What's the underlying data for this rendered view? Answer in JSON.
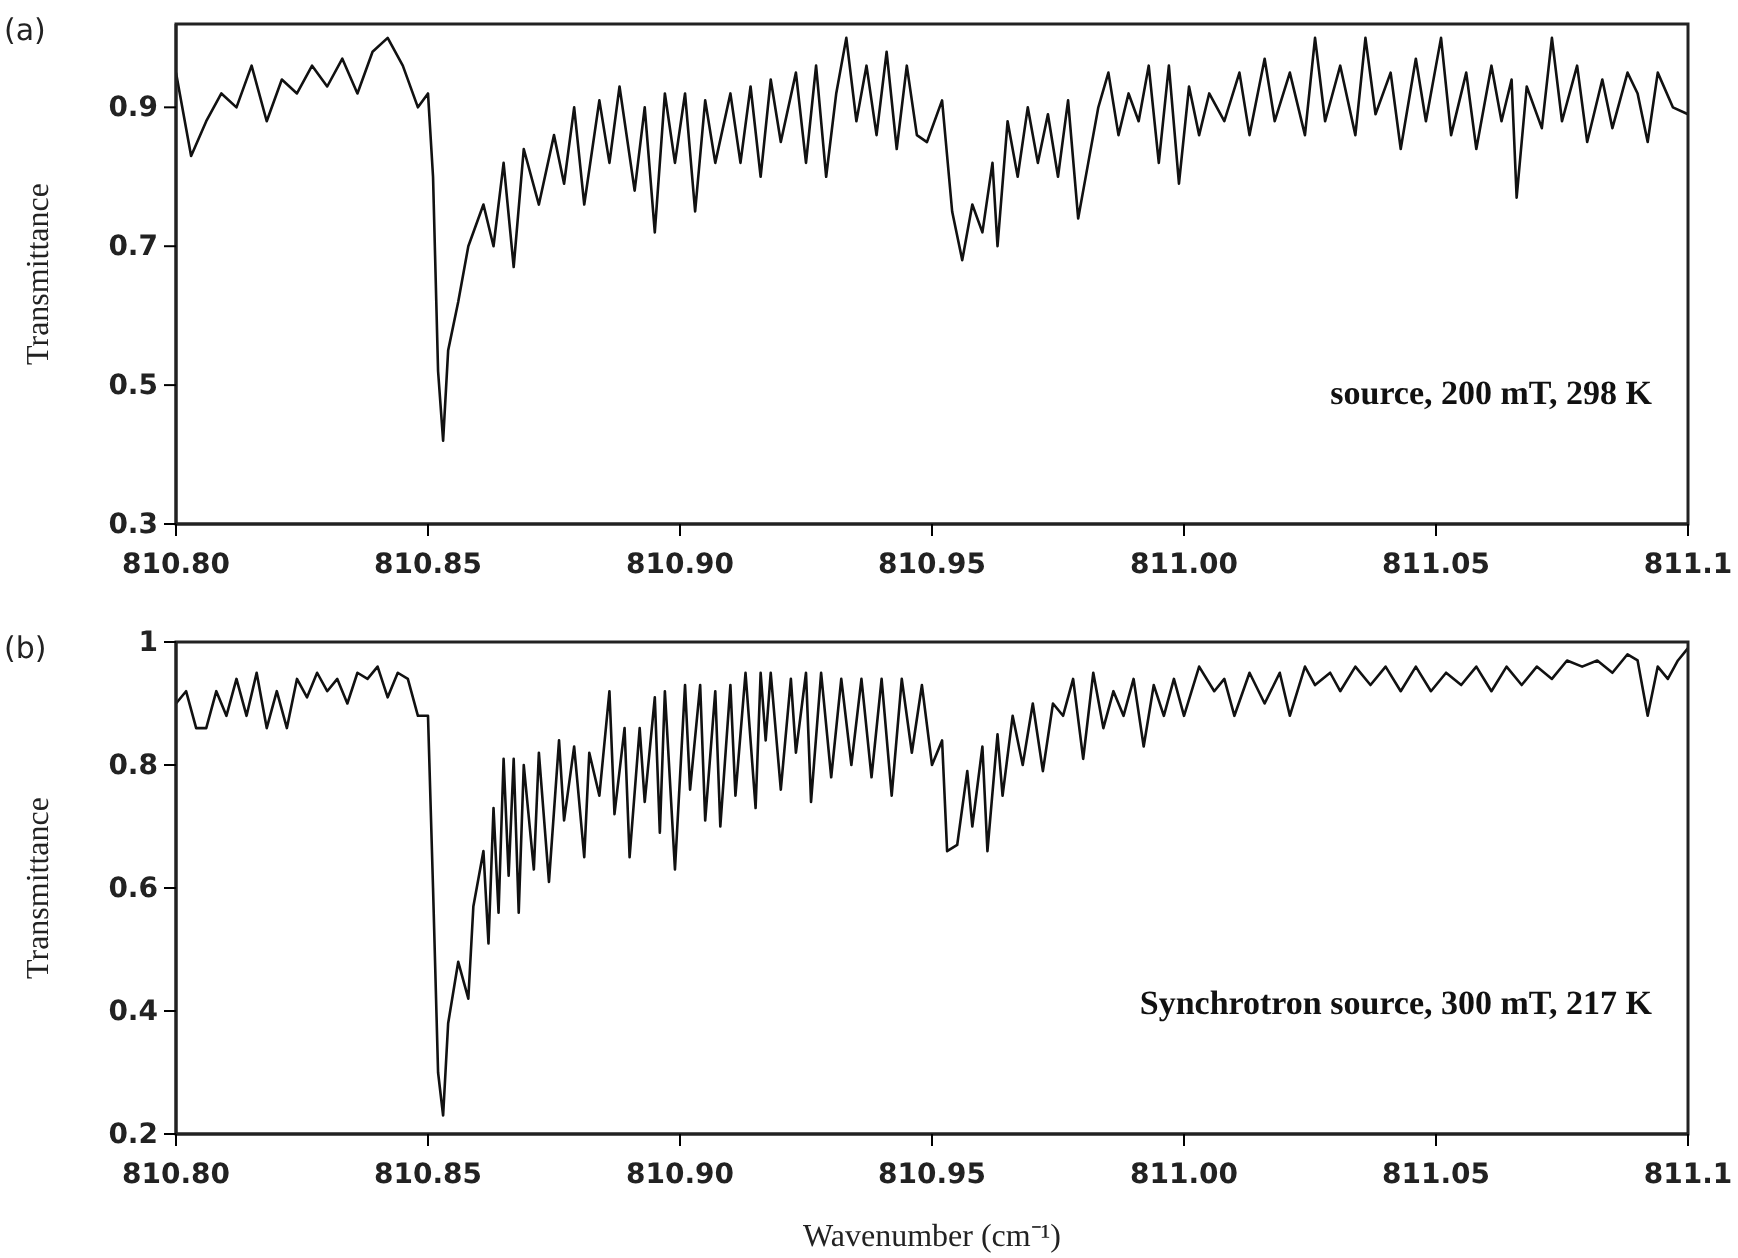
{
  "chart_data": [
    {
      "type": "line",
      "ylabel": "Transmittance",
      "annotations": [
        "(a)",
        "source, 200 mT, 298 K"
      ],
      "xlim": [
        810.8,
        811.1
      ],
      "ylim": [
        0.3,
        1.02
      ],
      "xticks": [
        {
          "value": 810.8,
          "label": "810.80"
        },
        {
          "value": 810.85,
          "label": "810.85"
        },
        {
          "value": 810.9,
          "label": "810.90"
        },
        {
          "value": 810.95,
          "label": "810.95"
        },
        {
          "value": 811.0,
          "label": "811.00"
        },
        {
          "value": 811.05,
          "label": "811.05"
        },
        811.1
      ],
      "yticks": [
        0.3,
        0.5,
        0.7,
        0.9
      ],
      "grid": false,
      "marker": "none",
      "line_style": "solid",
      "series": [
        {
          "color": "#111111",
          "x": [
            810.8,
            810.803,
            810.806,
            810.809,
            810.812,
            810.815,
            810.818,
            810.821,
            810.824,
            810.827,
            810.83,
            810.833,
            810.836,
            810.839,
            810.842,
            810.845,
            810.848,
            810.85,
            810.851,
            810.852,
            810.853,
            810.854,
            810.856,
            810.858,
            810.861,
            810.863,
            810.865,
            810.867,
            810.869,
            810.872,
            810.875,
            810.877,
            810.879,
            810.881,
            810.884,
            810.886,
            810.888,
            810.891,
            810.893,
            810.895,
            810.897,
            810.899,
            810.901,
            810.903,
            810.905,
            810.907,
            810.91,
            810.912,
            810.914,
            810.916,
            810.918,
            810.92,
            810.923,
            810.925,
            810.927,
            810.929,
            810.931,
            810.933,
            810.935,
            810.937,
            810.939,
            810.941,
            810.943,
            810.945,
            810.947,
            810.949,
            810.952,
            810.954,
            810.956,
            810.958,
            810.96,
            810.962,
            810.963,
            810.965,
            810.967,
            810.969,
            810.971,
            810.973,
            810.975,
            810.977,
            810.979,
            810.981,
            810.983,
            810.985,
            810.987,
            810.989,
            810.991,
            810.993,
            810.995,
            810.997,
            810.999,
            811.001,
            811.003,
            811.005,
            811.008,
            811.011,
            811.013,
            811.016,
            811.018,
            811.021,
            811.024,
            811.026,
            811.028,
            811.031,
            811.034,
            811.036,
            811.038,
            811.041,
            811.043,
            811.046,
            811.048,
            811.051,
            811.053,
            811.056,
            811.058,
            811.061,
            811.063,
            811.065,
            811.066,
            811.068,
            811.071,
            811.073,
            811.075,
            811.078,
            811.08,
            811.083,
            811.085,
            811.088,
            811.09,
            811.092,
            811.094,
            811.097,
            811.1
          ],
          "values": [
            0.95,
            0.83,
            0.88,
            0.92,
            0.9,
            0.96,
            0.88,
            0.94,
            0.92,
            0.96,
            0.93,
            0.97,
            0.92,
            0.98,
            1.0,
            0.96,
            0.9,
            0.92,
            0.8,
            0.52,
            0.42,
            0.55,
            0.62,
            0.7,
            0.76,
            0.7,
            0.82,
            0.67,
            0.84,
            0.76,
            0.86,
            0.79,
            0.9,
            0.76,
            0.91,
            0.82,
            0.93,
            0.78,
            0.9,
            0.72,
            0.92,
            0.82,
            0.92,
            0.75,
            0.91,
            0.82,
            0.92,
            0.82,
            0.93,
            0.8,
            0.94,
            0.85,
            0.95,
            0.82,
            0.96,
            0.8,
            0.92,
            1.0,
            0.88,
            0.96,
            0.86,
            0.98,
            0.84,
            0.96,
            0.86,
            0.85,
            0.91,
            0.75,
            0.68,
            0.76,
            0.72,
            0.82,
            0.7,
            0.88,
            0.8,
            0.9,
            0.82,
            0.89,
            0.8,
            0.91,
            0.74,
            0.82,
            0.9,
            0.95,
            0.86,
            0.92,
            0.88,
            0.96,
            0.82,
            0.96,
            0.79,
            0.93,
            0.86,
            0.92,
            0.88,
            0.95,
            0.86,
            0.97,
            0.88,
            0.95,
            0.86,
            1.0,
            0.88,
            0.96,
            0.86,
            1.0,
            0.89,
            0.95,
            0.84,
            0.97,
            0.88,
            1.0,
            0.86,
            0.95,
            0.84,
            0.96,
            0.88,
            0.94,
            0.77,
            0.93,
            0.87,
            1.0,
            0.88,
            0.96,
            0.85,
            0.94,
            0.87,
            0.95,
            0.92,
            0.85,
            0.95,
            0.9,
            0.89
          ]
        }
      ]
    },
    {
      "type": "line",
      "xlabel": "Wavenumber (cm⁻¹)",
      "ylabel": "Transmittance",
      "annotations": [
        "(b)",
        "Synchrotron source, 300 mT, 217 K"
      ],
      "xlim": [
        810.8,
        811.1
      ],
      "ylim": [
        0.2,
        1
      ],
      "xticks": [
        {
          "value": 810.8,
          "label": "810.80"
        },
        {
          "value": 810.85,
          "label": "810.85"
        },
        {
          "value": 810.9,
          "label": "810.90"
        },
        {
          "value": 810.95,
          "label": "810.95"
        },
        {
          "value": 811.0,
          "label": "811.00"
        },
        {
          "value": 811.05,
          "label": "811.05"
        },
        811.1
      ],
      "yticks": [
        0.2,
        0.4,
        0.6,
        0.8,
        1
      ],
      "grid": false,
      "marker": "none",
      "line_style": "solid",
      "series": [
        {
          "color": "#111111",
          "x": [
            810.8,
            810.802,
            810.804,
            810.806,
            810.808,
            810.81,
            810.812,
            810.814,
            810.816,
            810.818,
            810.82,
            810.822,
            810.824,
            810.826,
            810.828,
            810.83,
            810.832,
            810.834,
            810.836,
            810.838,
            810.84,
            810.842,
            810.844,
            810.846,
            810.848,
            810.85,
            810.851,
            810.852,
            810.853,
            810.854,
            810.856,
            810.858,
            810.859,
            810.861,
            810.862,
            810.863,
            810.864,
            810.865,
            810.866,
            810.867,
            810.868,
            810.869,
            810.871,
            810.872,
            810.874,
            810.876,
            810.877,
            810.879,
            810.881,
            810.882,
            810.884,
            810.886,
            810.887,
            810.889,
            810.89,
            810.892,
            810.893,
            810.895,
            810.896,
            810.897,
            810.899,
            810.901,
            810.902,
            810.904,
            810.905,
            810.907,
            810.908,
            810.91,
            810.911,
            810.913,
            810.915,
            810.916,
            810.917,
            810.918,
            810.92,
            810.922,
            810.923,
            810.925,
            810.926,
            810.928,
            810.93,
            810.932,
            810.934,
            810.936,
            810.938,
            810.94,
            810.942,
            810.944,
            810.946,
            810.948,
            810.95,
            810.952,
            810.953,
            810.955,
            810.957,
            810.958,
            810.96,
            810.961,
            810.963,
            810.964,
            810.966,
            810.968,
            810.97,
            810.972,
            810.974,
            810.976,
            810.978,
            810.98,
            810.982,
            810.984,
            810.986,
            810.988,
            810.99,
            810.992,
            810.994,
            810.996,
            810.998,
            811.0,
            811.003,
            811.006,
            811.008,
            811.01,
            811.013,
            811.016,
            811.019,
            811.021,
            811.024,
            811.026,
            811.029,
            811.031,
            811.034,
            811.037,
            811.04,
            811.043,
            811.046,
            811.049,
            811.052,
            811.055,
            811.058,
            811.061,
            811.064,
            811.067,
            811.07,
            811.073,
            811.076,
            811.079,
            811.082,
            811.085,
            811.088,
            811.09,
            811.092,
            811.094,
            811.096,
            811.098,
            811.1
          ],
          "values": [
            0.9,
            0.92,
            0.86,
            0.86,
            0.92,
            0.88,
            0.94,
            0.88,
            0.95,
            0.86,
            0.92,
            0.86,
            0.94,
            0.91,
            0.95,
            0.92,
            0.94,
            0.9,
            0.95,
            0.94,
            0.96,
            0.91,
            0.95,
            0.94,
            0.88,
            0.88,
            0.6,
            0.3,
            0.23,
            0.38,
            0.48,
            0.42,
            0.57,
            0.66,
            0.51,
            0.73,
            0.56,
            0.81,
            0.62,
            0.81,
            0.56,
            0.8,
            0.63,
            0.82,
            0.61,
            0.84,
            0.71,
            0.83,
            0.65,
            0.82,
            0.75,
            0.92,
            0.72,
            0.86,
            0.65,
            0.86,
            0.74,
            0.91,
            0.69,
            0.92,
            0.63,
            0.93,
            0.76,
            0.93,
            0.71,
            0.92,
            0.7,
            0.93,
            0.75,
            0.95,
            0.73,
            0.95,
            0.84,
            0.95,
            0.76,
            0.94,
            0.82,
            0.95,
            0.74,
            0.95,
            0.78,
            0.94,
            0.8,
            0.94,
            0.78,
            0.94,
            0.75,
            0.94,
            0.82,
            0.93,
            0.8,
            0.84,
            0.66,
            0.67,
            0.79,
            0.7,
            0.83,
            0.66,
            0.85,
            0.75,
            0.88,
            0.8,
            0.9,
            0.79,
            0.9,
            0.88,
            0.94,
            0.81,
            0.95,
            0.86,
            0.92,
            0.88,
            0.94,
            0.83,
            0.93,
            0.88,
            0.94,
            0.88,
            0.96,
            0.92,
            0.94,
            0.88,
            0.95,
            0.9,
            0.95,
            0.88,
            0.96,
            0.93,
            0.95,
            0.92,
            0.96,
            0.93,
            0.96,
            0.92,
            0.96,
            0.92,
            0.95,
            0.93,
            0.96,
            0.92,
            0.96,
            0.93,
            0.96,
            0.94,
            0.97,
            0.96,
            0.97,
            0.95,
            0.98,
            0.97,
            0.88,
            0.96,
            0.94,
            0.97,
            0.99
          ]
        }
      ]
    }
  ]
}
